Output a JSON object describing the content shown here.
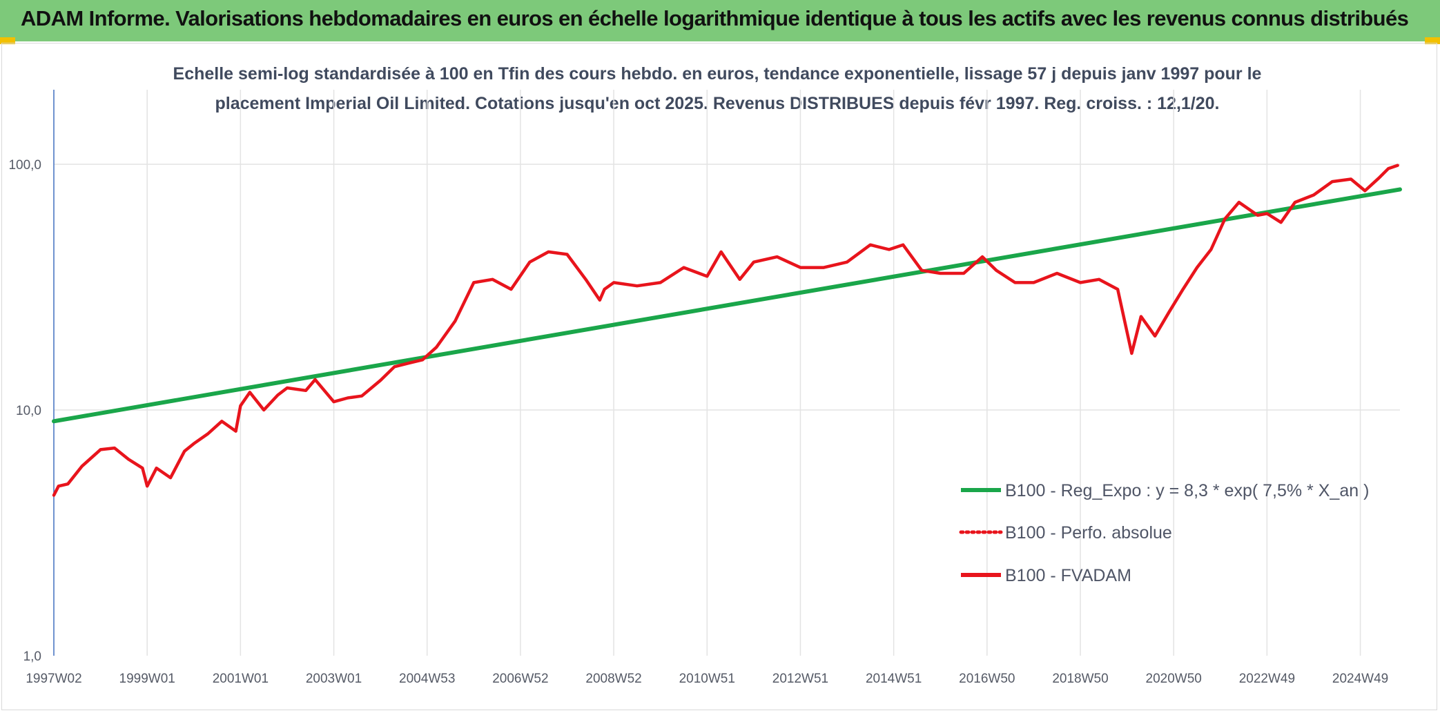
{
  "header": {
    "title": "ADAM Informe. Valorisations hebdomadaires en euros en échelle logarithmique identique à tous les actifs avec les revenus connus distribués"
  },
  "colors": {
    "banner": "#7dc97a",
    "accent_corners": "#f2c000",
    "fvadam": "#e8141c",
    "regression": "#1aa64a",
    "grid": "#e3e3e3",
    "axis": "#4472c4"
  },
  "chart_data": {
    "type": "line",
    "title_line1": "Echelle semi-log standardisée à 100 en Tfin des cours hebdo. en euros, tendance exponentielle, lissage 57 j depuis janv 1997 pour le",
    "title_line2": "placement Imperial Oil Limited. Cotations jusqu'en oct 2025. Revenus DISTRIBUES depuis févr 1997. Reg. croiss. : 12,1/20.",
    "y_scale": "log",
    "ylim": [
      1,
      200
    ],
    "xlim": [
      1997.0,
      2025.85
    ],
    "grid": true,
    "legend_position": "right",
    "y_ticks": [
      {
        "value": 1,
        "label": "1,0"
      },
      {
        "value": 10,
        "label": "10,0"
      },
      {
        "value": 100,
        "label": "100,0"
      }
    ],
    "x_ticks": [
      {
        "value": 1997.0,
        "label": "1997W02"
      },
      {
        "value": 1999.0,
        "label": "1999W01"
      },
      {
        "value": 2001.0,
        "label": "2001W01"
      },
      {
        "value": 2003.0,
        "label": "2003W01"
      },
      {
        "value": 2005.0,
        "label": "2004W53"
      },
      {
        "value": 2007.0,
        "label": "2006W52"
      },
      {
        "value": 2009.0,
        "label": "2008W52"
      },
      {
        "value": 2011.0,
        "label": "2010W51"
      },
      {
        "value": 2013.0,
        "label": "2012W51"
      },
      {
        "value": 2015.0,
        "label": "2014W51"
      },
      {
        "value": 2017.0,
        "label": "2016W50"
      },
      {
        "value": 2019.0,
        "label": "2018W50"
      },
      {
        "value": 2021.0,
        "label": "2020W50"
      },
      {
        "value": 2023.0,
        "label": "2022W49"
      },
      {
        "value": 2025.0,
        "label": "2024W49"
      }
    ],
    "series": [
      {
        "name": "B100 - Reg_Expo : y = 8,3 * exp( 7,5% *  X_an )",
        "color": "#1aa64a",
        "style": "solid",
        "x": [
          1997.0,
          2025.85
        ],
        "y": [
          9.0,
          79.0
        ]
      },
      {
        "name": "B100 - Perfo. absolue",
        "color": "#e8141c",
        "style": "dotted",
        "x": [],
        "y": []
      },
      {
        "name": "B100 - FVADAM",
        "color": "#e8141c",
        "style": "solid",
        "x": [
          1997.0,
          1997.1,
          1997.3,
          1997.6,
          1998.0,
          1998.3,
          1998.6,
          1998.9,
          1999.0,
          1999.2,
          1999.5,
          1999.8,
          2000.0,
          2000.3,
          2000.6,
          2000.9,
          2001.0,
          2001.2,
          2001.5,
          2001.8,
          2002.0,
          2002.4,
          2002.6,
          2003.0,
          2003.3,
          2003.6,
          2004.0,
          2004.3,
          2004.6,
          2004.9,
          2005.2,
          2005.6,
          2006.0,
          2006.4,
          2006.8,
          2007.2,
          2007.6,
          2008.0,
          2008.4,
          2008.7,
          2008.8,
          2009.0,
          2009.5,
          2010.0,
          2010.5,
          2011.0,
          2011.3,
          2011.7,
          2012.0,
          2012.5,
          2013.0,
          2013.5,
          2014.0,
          2014.5,
          2014.9,
          2015.2,
          2015.6,
          2016.0,
          2016.5,
          2016.9,
          2017.2,
          2017.6,
          2018.0,
          2018.5,
          2019.0,
          2019.4,
          2019.8,
          2020.1,
          2020.3,
          2020.6,
          2020.9,
          2021.2,
          2021.5,
          2021.8,
          2022.1,
          2022.4,
          2022.8,
          2023.0,
          2023.3,
          2023.6,
          2024.0,
          2024.4,
          2024.8,
          2025.1,
          2025.4,
          2025.6,
          2025.8
        ],
        "y": [
          4.5,
          4.9,
          5.0,
          5.9,
          6.9,
          7.0,
          6.3,
          5.8,
          4.9,
          5.8,
          5.3,
          6.8,
          7.3,
          8.0,
          9.0,
          8.2,
          10.4,
          11.8,
          10.0,
          11.5,
          12.3,
          12.0,
          13.3,
          10.8,
          11.2,
          11.4,
          13.2,
          15.0,
          15.5,
          16.0,
          18.0,
          23.0,
          33.0,
          34.0,
          31.0,
          40.0,
          44.0,
          43.0,
          34.0,
          28.0,
          31.0,
          33.0,
          32.0,
          33.0,
          38.0,
          35.0,
          44.0,
          34.0,
          40.0,
          42.0,
          38.0,
          38.0,
          40.0,
          47.0,
          45.0,
          47.0,
          37.0,
          36.0,
          36.0,
          42.0,
          37.0,
          33.0,
          33.0,
          36.0,
          33.0,
          34.0,
          31.0,
          17.0,
          24.0,
          20.0,
          25.0,
          31.0,
          38.0,
          45.0,
          60.0,
          70.0,
          62.0,
          63.0,
          58.0,
          70.0,
          75.0,
          85.0,
          87.0,
          78.0,
          88.0,
          96.0,
          99.0
        ]
      }
    ]
  }
}
